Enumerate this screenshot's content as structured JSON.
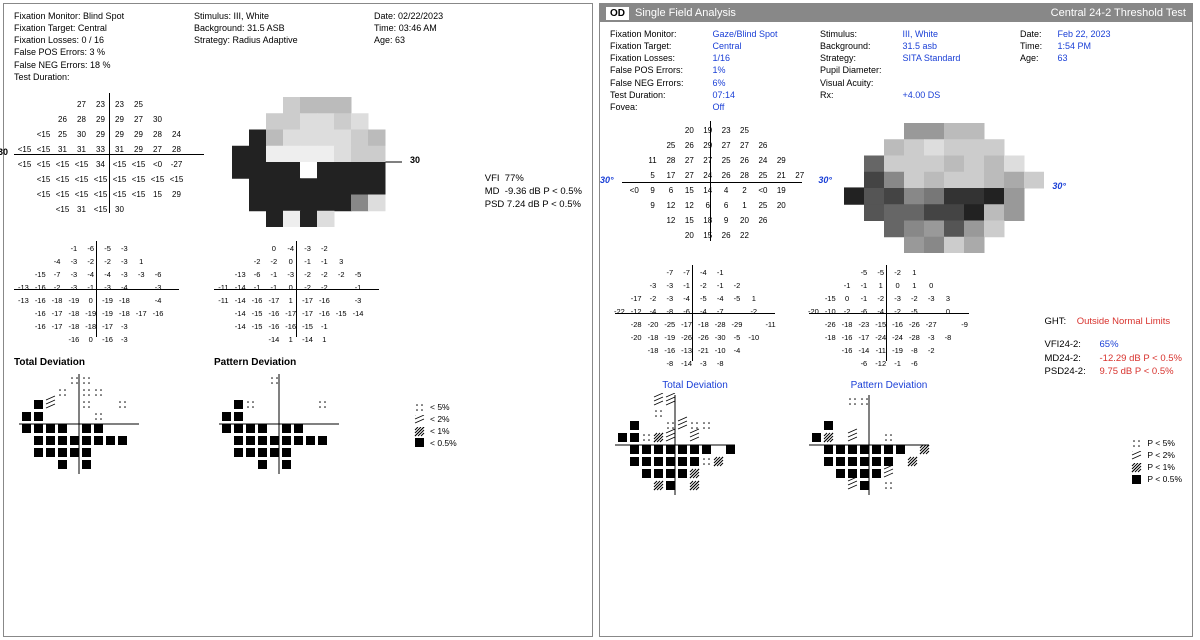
{
  "left": {
    "header": {
      "col1": {
        "fixation_monitor_l": "Fixation Monitor:",
        "fixation_monitor_v": "Blind Spot",
        "fixation_target_l": "Fixation Target:",
        "fixation_target_v": "Central",
        "fixation_losses_l": "Fixation Losses:",
        "fixation_losses_v": "0 / 16",
        "fp_l": "False POS Errors:",
        "fp_v": "3 %",
        "fn_l": "False NEG Errors:",
        "fn_v": "18 %",
        "td_l": "Test Duration:",
        "td_v": ""
      },
      "col2": {
        "stim_l": "Stimulus:",
        "stim_v": "III, White",
        "bg_l": "Background:",
        "bg_v": "31.5 ASB",
        "strat_l": "Strategy:",
        "strat_v": "Radius Adaptive"
      },
      "col3": {
        "date_l": "Date:",
        "date_v": "02/22/2023",
        "time_l": "Time:",
        "time_v": "03:46 AM",
        "age_l": "Age:",
        "age_v": "63"
      }
    },
    "deg30_l": "30",
    "deg30_r": "30",
    "threshold_rows": [
      [
        "",
        "",
        "",
        "27",
        "23",
        "23",
        "25",
        "",
        "",
        ""
      ],
      [
        "",
        "",
        "26",
        "28",
        "29",
        "29",
        "27",
        "30",
        "",
        ""
      ],
      [
        "",
        "<15",
        "25",
        "30",
        "29",
        "29",
        "29",
        "28",
        "24",
        ""
      ],
      [
        "<15",
        "<15",
        "31",
        "31",
        "33",
        "31",
        "29",
        "27",
        "28",
        ""
      ],
      [
        "<15",
        "<15",
        "<15",
        "<15",
        "34",
        "<15",
        "<15",
        "<0",
        "-27",
        ""
      ],
      [
        "",
        "<15",
        "<15",
        "<15",
        "<15",
        "<15",
        "<15",
        "<15",
        "<15",
        ""
      ],
      [
        "",
        "<15",
        "<15",
        "<15",
        "<15",
        "<15",
        "<15",
        "15",
        "29",
        ""
      ],
      [
        "",
        "",
        "<15",
        "31",
        "<15",
        "30",
        "",
        "",
        "",
        ""
      ]
    ],
    "stats": {
      "vfi_l": "VFI",
      "vfi_v": "77%",
      "md_l": "MD",
      "md_v": "-9.36 dB P < 0.5%",
      "psd_l": "PSD",
      "psd_v": "7.24 dB P < 0.5%"
    },
    "total_rows": [
      [
        "",
        "",
        "",
        "-1",
        "-6",
        "-5",
        "-3",
        "",
        "",
        ""
      ],
      [
        "",
        "",
        "-4",
        "-3",
        "-2",
        "-2",
        "-3",
        "1",
        "",
        ""
      ],
      [
        "",
        "-15",
        "-7",
        "-3",
        "-4",
        "-4",
        "-3",
        "-3",
        "-6",
        ""
      ],
      [
        "-13",
        "-16",
        "-2",
        "-3",
        "-1",
        "-3",
        "-4",
        "",
        "-3",
        ""
      ],
      [
        "-13",
        "-16",
        "-18",
        "-19",
        "0",
        "-19",
        "-18",
        "",
        "-4",
        ""
      ],
      [
        "",
        "-16",
        "-17",
        "-18",
        "-19",
        "-19",
        "-18",
        "-17",
        "-16",
        ""
      ],
      [
        "",
        "-16",
        "-17",
        "-18",
        "-18",
        "-17",
        "-3",
        "",
        "",
        ""
      ],
      [
        "",
        "",
        "",
        "-16",
        "0",
        "-16",
        "-3",
        "",
        "",
        ""
      ]
    ],
    "pattern_rows": [
      [
        "",
        "",
        "",
        "0",
        "-4",
        "-3",
        "-2",
        "",
        "",
        ""
      ],
      [
        "",
        "",
        "-2",
        "-2",
        "0",
        "-1",
        "-1",
        "3",
        "",
        ""
      ],
      [
        "",
        "-13",
        "-6",
        "-1",
        "-3",
        "-2",
        "-2",
        "-2",
        "-5",
        ""
      ],
      [
        "-11",
        "-14",
        "-1",
        "-1",
        "0",
        "-2",
        "-2",
        "",
        "-1",
        ""
      ],
      [
        "-11",
        "-14",
        "-16",
        "-17",
        "1",
        "-17",
        "-16",
        "",
        "-3",
        ""
      ],
      [
        "",
        "-14",
        "-15",
        "-16",
        "-17",
        "-17",
        "-16",
        "-15",
        "-14",
        ""
      ],
      [
        "",
        "-14",
        "-15",
        "-16",
        "-16",
        "-15",
        "-1",
        "",
        "",
        ""
      ],
      [
        "",
        "",
        "",
        "-14",
        "1",
        "-14",
        "1",
        "",
        "",
        ""
      ]
    ],
    "total_title": "Total Deviation",
    "pattern_title": "Pattern Deviation",
    "legend": {
      "p5": "< 5%",
      "p2": "< 2%",
      "p1": "< 1%",
      "p05": "< 0.5%"
    },
    "total_prob": [
      [
        0,
        0,
        0,
        0,
        1,
        1,
        0,
        0,
        0,
        0
      ],
      [
        0,
        0,
        0,
        1,
        0,
        1,
        1,
        0,
        0,
        0
      ],
      [
        0,
        4,
        2,
        0,
        0,
        1,
        0,
        0,
        1,
        0
      ],
      [
        4,
        4,
        0,
        0,
        0,
        0,
        1,
        0,
        0,
        0
      ],
      [
        4,
        4,
        4,
        4,
        0,
        4,
        4,
        0,
        0,
        0
      ],
      [
        0,
        4,
        4,
        4,
        4,
        4,
        4,
        4,
        4,
        0
      ],
      [
        0,
        4,
        4,
        4,
        4,
        4,
        0,
        0,
        0,
        0
      ],
      [
        0,
        0,
        0,
        4,
        0,
        4,
        0,
        0,
        0,
        0
      ]
    ],
    "pattern_prob": [
      [
        0,
        0,
        0,
        0,
        1,
        0,
        0,
        0,
        0,
        0
      ],
      [
        0,
        0,
        0,
        0,
        0,
        0,
        0,
        0,
        0,
        0
      ],
      [
        0,
        4,
        1,
        0,
        0,
        0,
        0,
        0,
        1,
        0
      ],
      [
        4,
        4,
        0,
        0,
        0,
        0,
        0,
        0,
        0,
        0
      ],
      [
        4,
        4,
        4,
        4,
        0,
        4,
        4,
        0,
        0,
        0
      ],
      [
        0,
        4,
        4,
        4,
        4,
        4,
        4,
        4,
        4,
        0
      ],
      [
        0,
        4,
        4,
        4,
        4,
        4,
        0,
        0,
        0,
        0
      ],
      [
        0,
        0,
        0,
        4,
        0,
        4,
        0,
        0,
        0,
        0
      ]
    ]
  },
  "right": {
    "titlebar": {
      "eye": "OD",
      "title": "Single Field Analysis",
      "right": "Central 24-2 Threshold Test"
    },
    "header": {
      "col1": {
        "fm_l": "Fixation Monitor:",
        "fm_v": "Gaze/Blind Spot",
        "ft_l": "Fixation Target:",
        "ft_v": "Central",
        "fl_l": "Fixation Losses:",
        "fl_v": "1/16",
        "fp_l": "False POS Errors:",
        "fp_v": "1%",
        "fn_l": "False NEG Errors:",
        "fn_v": "6%",
        "td_l": "Test Duration:",
        "td_v": "07:14",
        "fov_l": "Fovea:",
        "fov_v": "Off"
      },
      "col2": {
        "stim_l": "Stimulus:",
        "stim_v": "III, White",
        "bg_l": "Background:",
        "bg_v": "31.5 asb",
        "strat_l": "Strategy:",
        "strat_v": "SITA Standard",
        "pd_l": "Pupil Diameter:",
        "pd_v": "",
        "va_l": "Visual Acuity:",
        "va_v": "",
        "rx_l": "Rx:",
        "rx_v": "+4.00 DS"
      },
      "col3": {
        "date_l": "Date:",
        "date_v": "Feb 22, 2023",
        "time_l": "Time:",
        "time_v": "1:54 PM",
        "age_l": "Age:",
        "age_v": "63"
      }
    },
    "deg30_l": "30°",
    "deg30_r": "30°",
    "deg30_rr": "30°",
    "threshold_rows": [
      [
        "",
        "",
        "",
        "20",
        "19",
        "23",
        "25",
        "",
        "",
        ""
      ],
      [
        "",
        "",
        "25",
        "26",
        "29",
        "27",
        "27",
        "26",
        "",
        ""
      ],
      [
        "",
        "11",
        "28",
        "27",
        "27",
        "25",
        "26",
        "24",
        "29",
        ""
      ],
      [
        "",
        "5",
        "17",
        "27",
        "24",
        "26",
        "28",
        "25",
        "21",
        "27"
      ],
      [
        "<0",
        "9",
        "6",
        "15",
        "14",
        "4",
        "2",
        "<0",
        "19",
        ""
      ],
      [
        "",
        "9",
        "12",
        "12",
        "6",
        "6",
        "1",
        "25",
        "20",
        ""
      ],
      [
        "",
        "",
        "12",
        "15",
        "18",
        "9",
        "20",
        "26",
        "",
        ""
      ],
      [
        "",
        "",
        "",
        "20",
        "15",
        "26",
        "22",
        "",
        "",
        ""
      ]
    ],
    "total_rows": [
      [
        "",
        "",
        "",
        "-7",
        "-7",
        "-4",
        "-1",
        "",
        "",
        ""
      ],
      [
        "",
        "",
        "-3",
        "-3",
        "-1",
        "-2",
        "-1",
        "-2",
        "",
        ""
      ],
      [
        "",
        "-17",
        "-2",
        "-3",
        "-4",
        "-5",
        "-4",
        "-5",
        "1",
        ""
      ],
      [
        "-22",
        "-12",
        "-4",
        "-8",
        "-6",
        "-4",
        "-7",
        "",
        "-2",
        ""
      ],
      [
        "",
        "-28",
        "-20",
        "-25",
        "-17",
        "-18",
        "-28",
        "-29",
        "",
        "-11"
      ],
      [
        "",
        "-20",
        "-18",
        "-19",
        "-26",
        "-26",
        "-30",
        "-5",
        "-10",
        ""
      ],
      [
        "",
        "",
        "-18",
        "-16",
        "-13",
        "-21",
        "-10",
        "-4",
        "",
        ""
      ],
      [
        "",
        "",
        "",
        "-8",
        "-14",
        "-3",
        "-8",
        "",
        "",
        ""
      ]
    ],
    "pattern_rows": [
      [
        "",
        "",
        "",
        "-5",
        "-5",
        "-2",
        "1",
        "",
        "",
        ""
      ],
      [
        "",
        "",
        "-1",
        "-1",
        "1",
        "0",
        "1",
        "0",
        "",
        ""
      ],
      [
        "",
        "-15",
        "0",
        "-1",
        "-2",
        "-3",
        "-2",
        "-3",
        "3",
        ""
      ],
      [
        "-20",
        "-10",
        "-2",
        "-6",
        "-4",
        "-2",
        "-5",
        "",
        "0",
        ""
      ],
      [
        "",
        "-26",
        "-18",
        "-23",
        "-15",
        "-16",
        "-26",
        "-27",
        "",
        "-9"
      ],
      [
        "",
        "-18",
        "-16",
        "-17",
        "-24",
        "-24",
        "-28",
        "-3",
        "-8",
        ""
      ],
      [
        "",
        "",
        "-16",
        "-14",
        "-11",
        "-19",
        "-8",
        "-2",
        "",
        ""
      ],
      [
        "",
        "",
        "",
        "-6",
        "-12",
        "-1",
        "-6",
        "",
        "",
        ""
      ]
    ],
    "total_title": "Total Deviation",
    "pattern_title": "Pattern Deviation",
    "ght_l": "GHT:",
    "ght_v": "Outside Normal Limits",
    "stats": {
      "vfi_l": "VFI24-2:",
      "vfi_v": "65%",
      "md_l": "MD24-2:",
      "md_v": "-12.29 dB P < 0.5%",
      "psd_l": "PSD24-2:",
      "psd_v": "9.75 dB P < 0.5%"
    },
    "legend": {
      "p5": "P < 5%",
      "p2": "P < 2%",
      "p1": "P < 1%",
      "p05": "P < 0.5%"
    },
    "total_prob": [
      [
        0,
        0,
        0,
        2,
        2,
        0,
        0,
        0,
        0,
        0
      ],
      [
        0,
        0,
        0,
        1,
        0,
        0,
        0,
        0,
        0,
        0
      ],
      [
        0,
        4,
        0,
        0,
        1,
        2,
        1,
        1,
        0,
        0
      ],
      [
        4,
        4,
        1,
        3,
        2,
        0,
        2,
        0,
        0,
        0
      ],
      [
        0,
        4,
        4,
        4,
        4,
        4,
        4,
        4,
        0,
        4
      ],
      [
        0,
        4,
        4,
        4,
        4,
        4,
        4,
        1,
        3,
        0
      ],
      [
        0,
        0,
        4,
        4,
        4,
        4,
        3,
        0,
        0,
        0
      ],
      [
        0,
        0,
        0,
        3,
        4,
        0,
        3,
        0,
        0,
        0
      ]
    ],
    "pattern_prob": [
      [
        0,
        0,
        0,
        1,
        1,
        0,
        0,
        0,
        0,
        0
      ],
      [
        0,
        0,
        0,
        0,
        0,
        0,
        0,
        0,
        0,
        0
      ],
      [
        0,
        4,
        0,
        0,
        0,
        0,
        0,
        0,
        0,
        0
      ],
      [
        4,
        3,
        0,
        2,
        0,
        0,
        1,
        0,
        0,
        0
      ],
      [
        0,
        4,
        4,
        4,
        4,
        4,
        4,
        4,
        0,
        3
      ],
      [
        0,
        4,
        4,
        4,
        4,
        4,
        4,
        0,
        3,
        0
      ],
      [
        0,
        0,
        4,
        4,
        4,
        4,
        2,
        0,
        0,
        0
      ],
      [
        0,
        0,
        0,
        2,
        4,
        0,
        1,
        0,
        0,
        0
      ]
    ]
  },
  "colors": {
    "text": "#000000",
    "blue": "#1a3fd6",
    "red": "#d8332e",
    "titlebar_bg": "#888888",
    "border": "#888888"
  },
  "gray_levels": [
    "#222",
    "#333",
    "#444",
    "#555",
    "#666",
    "#777",
    "#888",
    "#999",
    "#aaa",
    "#bbb",
    "#ccc",
    "#ddd",
    "#eee",
    "#fff"
  ]
}
